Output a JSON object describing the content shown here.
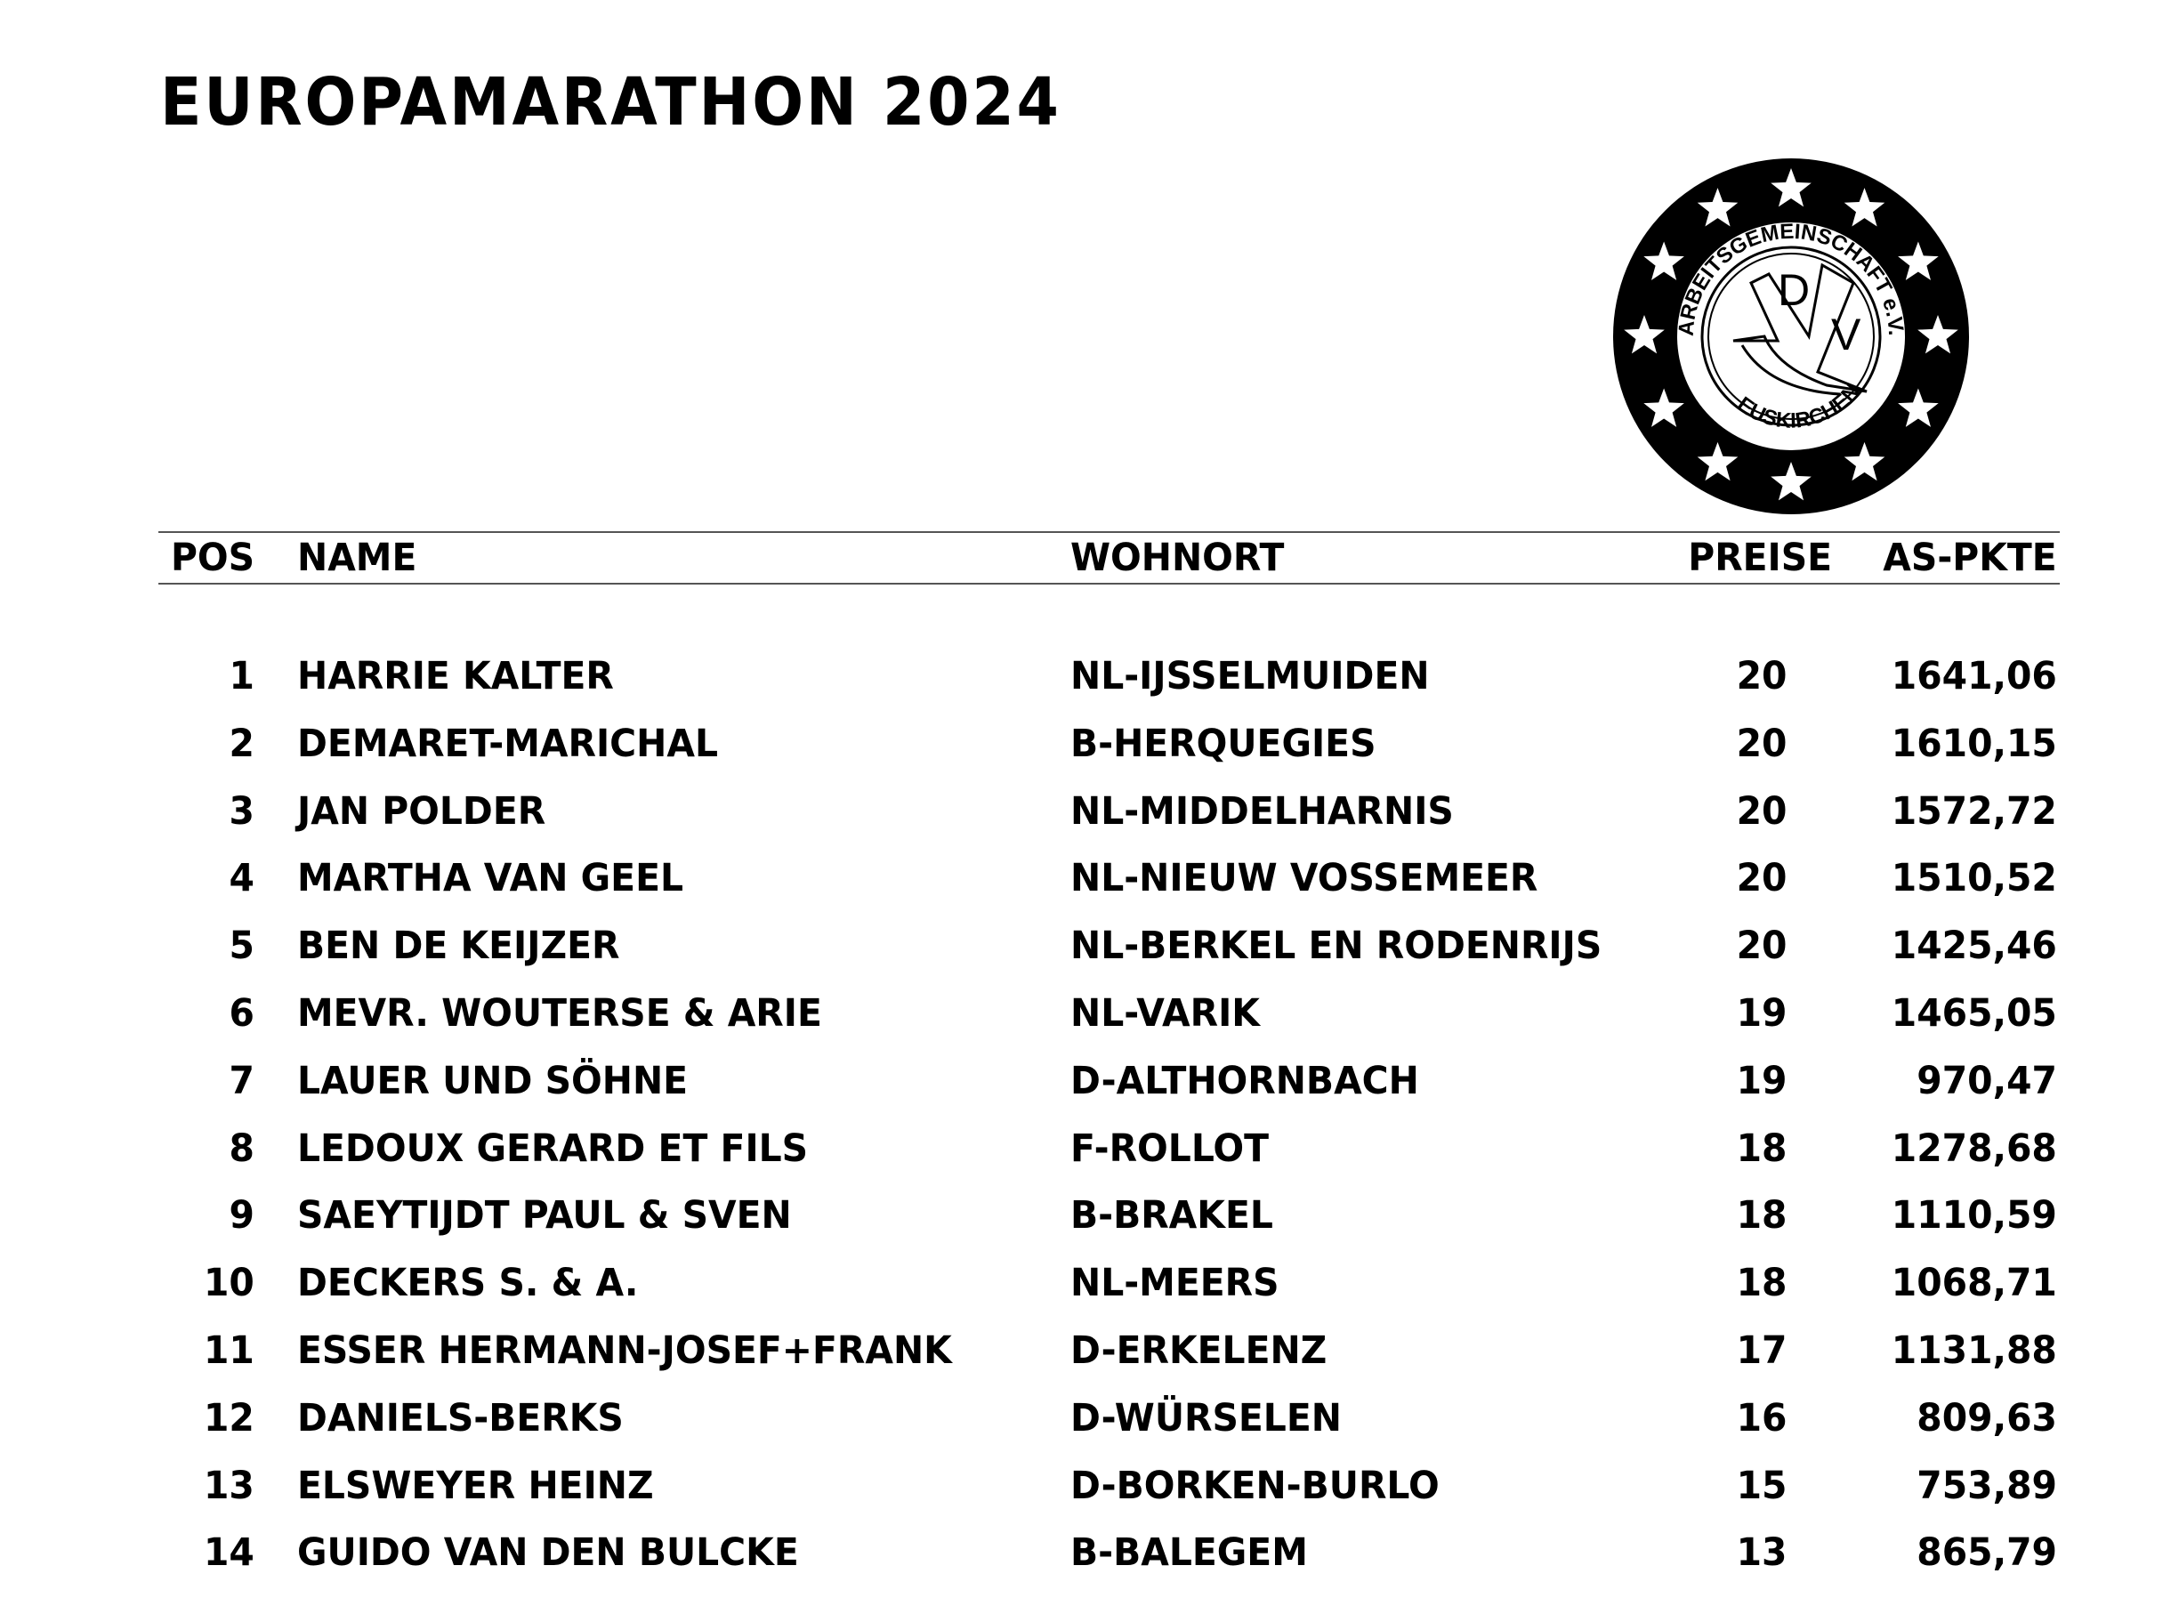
{
  "title": "EUROPAMARATHON 2024",
  "logo": {
    "top_text": "ARBEITSGEMEINSCHAFT e.V.",
    "bottom_text": "EUSKIRCHEN",
    "letters": [
      "D",
      "V"
    ],
    "icon": "dove-icon"
  },
  "table": {
    "headers": {
      "pos": "POS",
      "name": "NAME",
      "wohnort": "WOHNORT",
      "preise": "PREISE",
      "pkte": "AS-PKTE"
    },
    "rows": [
      {
        "pos": "1",
        "name": "HARRIE KALTER",
        "wohnort": "NL-IJSSELMUIDEN",
        "preise": "20",
        "pkte": "1641,06"
      },
      {
        "pos": "2",
        "name": "DEMARET-MARICHAL",
        "wohnort": "B-HERQUEGIES",
        "preise": "20",
        "pkte": "1610,15"
      },
      {
        "pos": "3",
        "name": "JAN POLDER",
        "wohnort": "NL-MIDDELHARNIS",
        "preise": "20",
        "pkte": "1572,72"
      },
      {
        "pos": "4",
        "name": "MARTHA VAN GEEL",
        "wohnort": "NL-NIEUW VOSSEMEER",
        "preise": "20",
        "pkte": "1510,52"
      },
      {
        "pos": "5",
        "name": "BEN DE KEIJZER",
        "wohnort": "NL-BERKEL EN RODENRIJS",
        "preise": "20",
        "pkte": "1425,46"
      },
      {
        "pos": "6",
        "name": "MEVR. WOUTERSE & ARIE",
        "wohnort": "NL-VARIK",
        "preise": "19",
        "pkte": "1465,05"
      },
      {
        "pos": "7",
        "name": "LAUER UND SÖHNE",
        "wohnort": "D-ALTHORNBACH",
        "preise": "19",
        "pkte": "970,47"
      },
      {
        "pos": "8",
        "name": "LEDOUX GERARD ET FILS",
        "wohnort": "F-ROLLOT",
        "preise": "18",
        "pkte": "1278,68"
      },
      {
        "pos": "9",
        "name": "SAEYTIJDT PAUL & SVEN",
        "wohnort": "B-BRAKEL",
        "preise": "18",
        "pkte": "1110,59"
      },
      {
        "pos": "10",
        "name": "DECKERS S. & A.",
        "wohnort": "NL-MEERS",
        "preise": "18",
        "pkte": "1068,71"
      },
      {
        "pos": "11",
        "name": "ESSER HERMANN-JOSEF+FRANK",
        "wohnort": "D-ERKELENZ",
        "preise": "17",
        "pkte": "1131,88"
      },
      {
        "pos": "12",
        "name": "DANIELS-BERKS",
        "wohnort": "D-WÜRSELEN",
        "preise": "16",
        "pkte": "809,63"
      },
      {
        "pos": "13",
        "name": "ELSWEYER HEINZ",
        "wohnort": "D-BORKEN-BURLO",
        "preise": "15",
        "pkte": "753,89"
      },
      {
        "pos": "14",
        "name": "GUIDO VAN DEN BULCKE",
        "wohnort": "B-BALEGEM",
        "preise": "13",
        "pkte": "865,79"
      }
    ]
  }
}
